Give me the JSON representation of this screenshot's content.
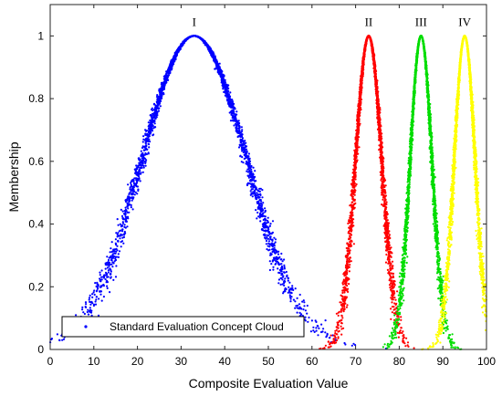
{
  "chart_data": {
    "type": "scatter",
    "xlabel": "Composite Evaluation Value",
    "ylabel": "Membership",
    "xlim": [
      0,
      100
    ],
    "ylim": [
      0,
      1.1
    ],
    "x_ticks": [
      "0",
      "10",
      "20",
      "30",
      "40",
      "50",
      "60",
      "70",
      "80",
      "90",
      "100"
    ],
    "y_ticks": [
      "0",
      "0.2",
      "0.4",
      "0.6",
      "0.8",
      "1"
    ],
    "grid": false,
    "legend": {
      "position": "bottom-left",
      "entries": [
        "Standard Evaluation Concept Cloud"
      ]
    },
    "series": [
      {
        "label": "I",
        "color": "#0000ff",
        "ex": 33,
        "en": 12,
        "he": 0.5
      },
      {
        "label": "II",
        "color": "#ff0000",
        "ex": 73,
        "en": 3,
        "he": 0.2
      },
      {
        "label": "III",
        "color": "#00dd00",
        "ex": 85,
        "en": 2.5,
        "he": 0.15
      },
      {
        "label": "IV",
        "color": "#ffff00",
        "ex": 95,
        "en": 2.4,
        "he": 0.15
      }
    ]
  }
}
